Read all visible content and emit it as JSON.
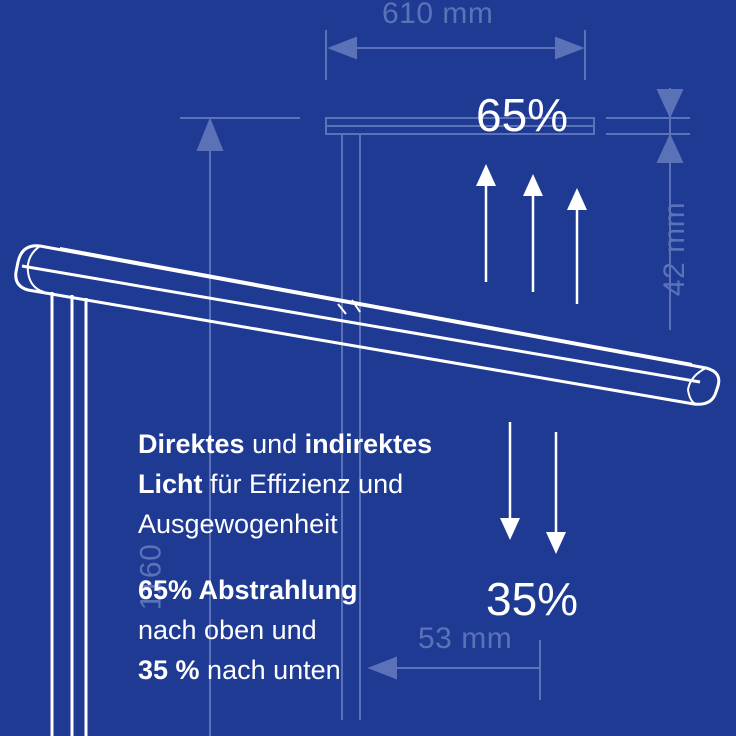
{
  "dimensions": {
    "width": "610 mm",
    "height": "42 mm",
    "stand": "1160",
    "depth": "53 mm"
  },
  "light_split": {
    "up": "65%",
    "down": "35%"
  },
  "description": {
    "line1": {
      "bold1": "Direktes",
      "normal1": " und ",
      "bold2": "indirektes"
    },
    "line2": {
      "bold": "Licht",
      "normal": " für Effizienz und"
    },
    "line3": {
      "normal": "Ausgewogenheit"
    },
    "line4": {
      "bold": "65% Abstrahlung"
    },
    "line5": {
      "normal": "nach oben und"
    },
    "line6": {
      "bold": "35 %",
      "normal": " nach unten"
    }
  },
  "colors": {
    "background": "#1f3a93",
    "blueprint": "#5b72b8",
    "text": "#ffffff"
  },
  "icons": [
    "arrow-up-icon",
    "arrow-down-icon"
  ]
}
